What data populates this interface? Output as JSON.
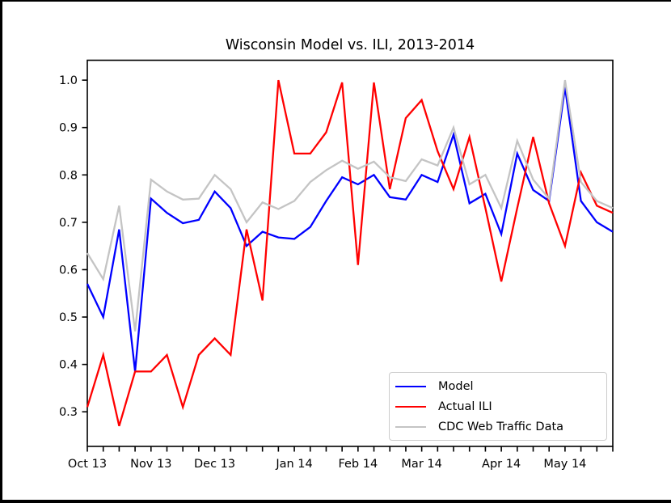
{
  "chart_data": {
    "type": "line",
    "title": "Wisconsin Model vs. ILI, 2013-2014",
    "xlabel": "",
    "ylabel": "",
    "grid": false,
    "n_points": 34,
    "x_unit": "weekly",
    "x_tick_labels": [
      {
        "label": "Oct 13",
        "index": 0
      },
      {
        "label": "Nov 13",
        "index": 4
      },
      {
        "label": "Dec 13",
        "index": 8
      },
      {
        "label": "Jan 14",
        "index": 13
      },
      {
        "label": "Feb 14",
        "index": 17
      },
      {
        "label": "Mar 14",
        "index": 21
      },
      {
        "label": "Apr 14",
        "index": 26
      },
      {
        "label": "May 14",
        "index": 30
      }
    ],
    "y_ticks": [
      0.3,
      0.4,
      0.5,
      0.6,
      0.7,
      0.8,
      0.9,
      1.0
    ],
    "ylim": [
      0.227,
      1.042
    ],
    "legend": {
      "position": "lower right",
      "entries": [
        "Model",
        "Actual ILI",
        "CDC Web Traffic Data"
      ]
    },
    "series": [
      {
        "name": "Model",
        "color": "#0000ff",
        "values": [
          0.57,
          0.5,
          0.685,
          0.385,
          0.75,
          0.72,
          0.698,
          0.705,
          0.765,
          0.73,
          0.65,
          0.68,
          0.668,
          0.665,
          0.69,
          0.745,
          0.795,
          0.78,
          0.8,
          0.753,
          0.748,
          0.8,
          0.785,
          0.885,
          0.74,
          0.76,
          0.675,
          0.845,
          0.768,
          0.745,
          0.985,
          0.745,
          0.7,
          0.68
        ]
      },
      {
        "name": "Actual ILI",
        "color": "#ff0000",
        "values": [
          0.31,
          0.42,
          0.27,
          0.385,
          0.385,
          0.42,
          0.31,
          0.42,
          0.455,
          0.42,
          0.685,
          0.535,
          1.0,
          0.845,
          0.845,
          0.89,
          0.995,
          0.61,
          0.995,
          0.77,
          0.92,
          0.958,
          0.85,
          0.77,
          0.88,
          0.73,
          0.575,
          0.73,
          0.88,
          0.74,
          0.65,
          0.805,
          0.735,
          0.72
        ]
      },
      {
        "name": "CDC Web Traffic Data",
        "color": "#c4c4c4",
        "values": [
          0.635,
          0.58,
          0.735,
          0.47,
          0.79,
          0.765,
          0.748,
          0.75,
          0.8,
          0.77,
          0.7,
          0.742,
          0.728,
          0.745,
          0.785,
          0.81,
          0.83,
          0.813,
          0.828,
          0.795,
          0.787,
          0.833,
          0.82,
          0.9,
          0.78,
          0.8,
          0.73,
          0.872,
          0.79,
          0.75,
          1.0,
          0.785,
          0.745,
          0.73
        ]
      }
    ]
  }
}
